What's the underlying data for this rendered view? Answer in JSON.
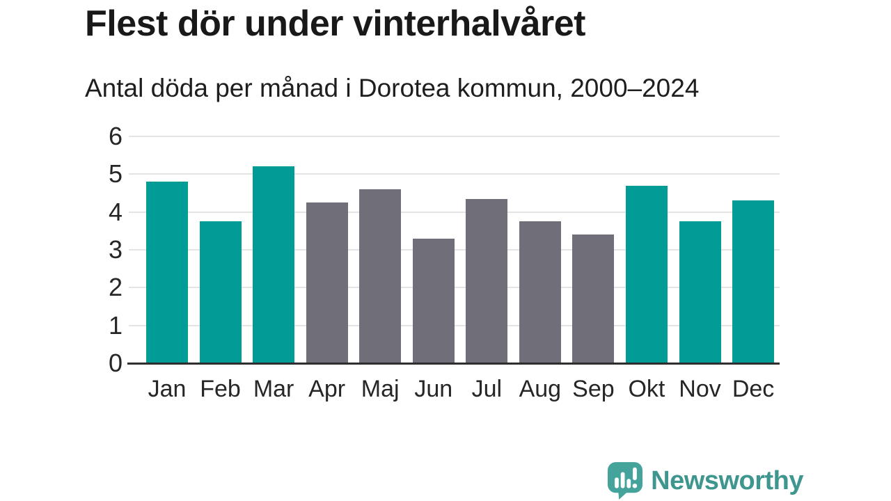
{
  "header": {
    "title": "Flest dör under vinterhalvåret",
    "subtitle": "Antal döda per månad i Dorotea kommun, 2000–2024"
  },
  "chart_data": {
    "type": "bar",
    "title": "Flest dör under vinterhalvåret",
    "subtitle": "Antal döda per månad i Dorotea kommun, 2000–2024",
    "categories": [
      "Jan",
      "Feb",
      "Mar",
      "Apr",
      "Maj",
      "Jun",
      "Jul",
      "Aug",
      "Sep",
      "Okt",
      "Nov",
      "Dec"
    ],
    "values": [
      4.8,
      3.75,
      5.2,
      4.25,
      4.6,
      3.3,
      4.35,
      3.75,
      3.4,
      4.7,
      3.75,
      4.3
    ],
    "bar_groups": [
      "winter",
      "winter",
      "winter",
      "summer",
      "summer",
      "summer",
      "summer",
      "summer",
      "summer",
      "winter",
      "winter",
      "winter"
    ],
    "colors": {
      "winter": "#009C95",
      "summer": "#706E78"
    },
    "xlabel": "",
    "ylabel": "",
    "ylim": [
      0,
      6
    ],
    "yticks": [
      0,
      1,
      2,
      3,
      4,
      5,
      6
    ],
    "grid": true,
    "legend": "none"
  },
  "footer": {
    "brand": "Newsworthy",
    "brand_color": "#3e968f",
    "logo_color": "#44a49b"
  }
}
